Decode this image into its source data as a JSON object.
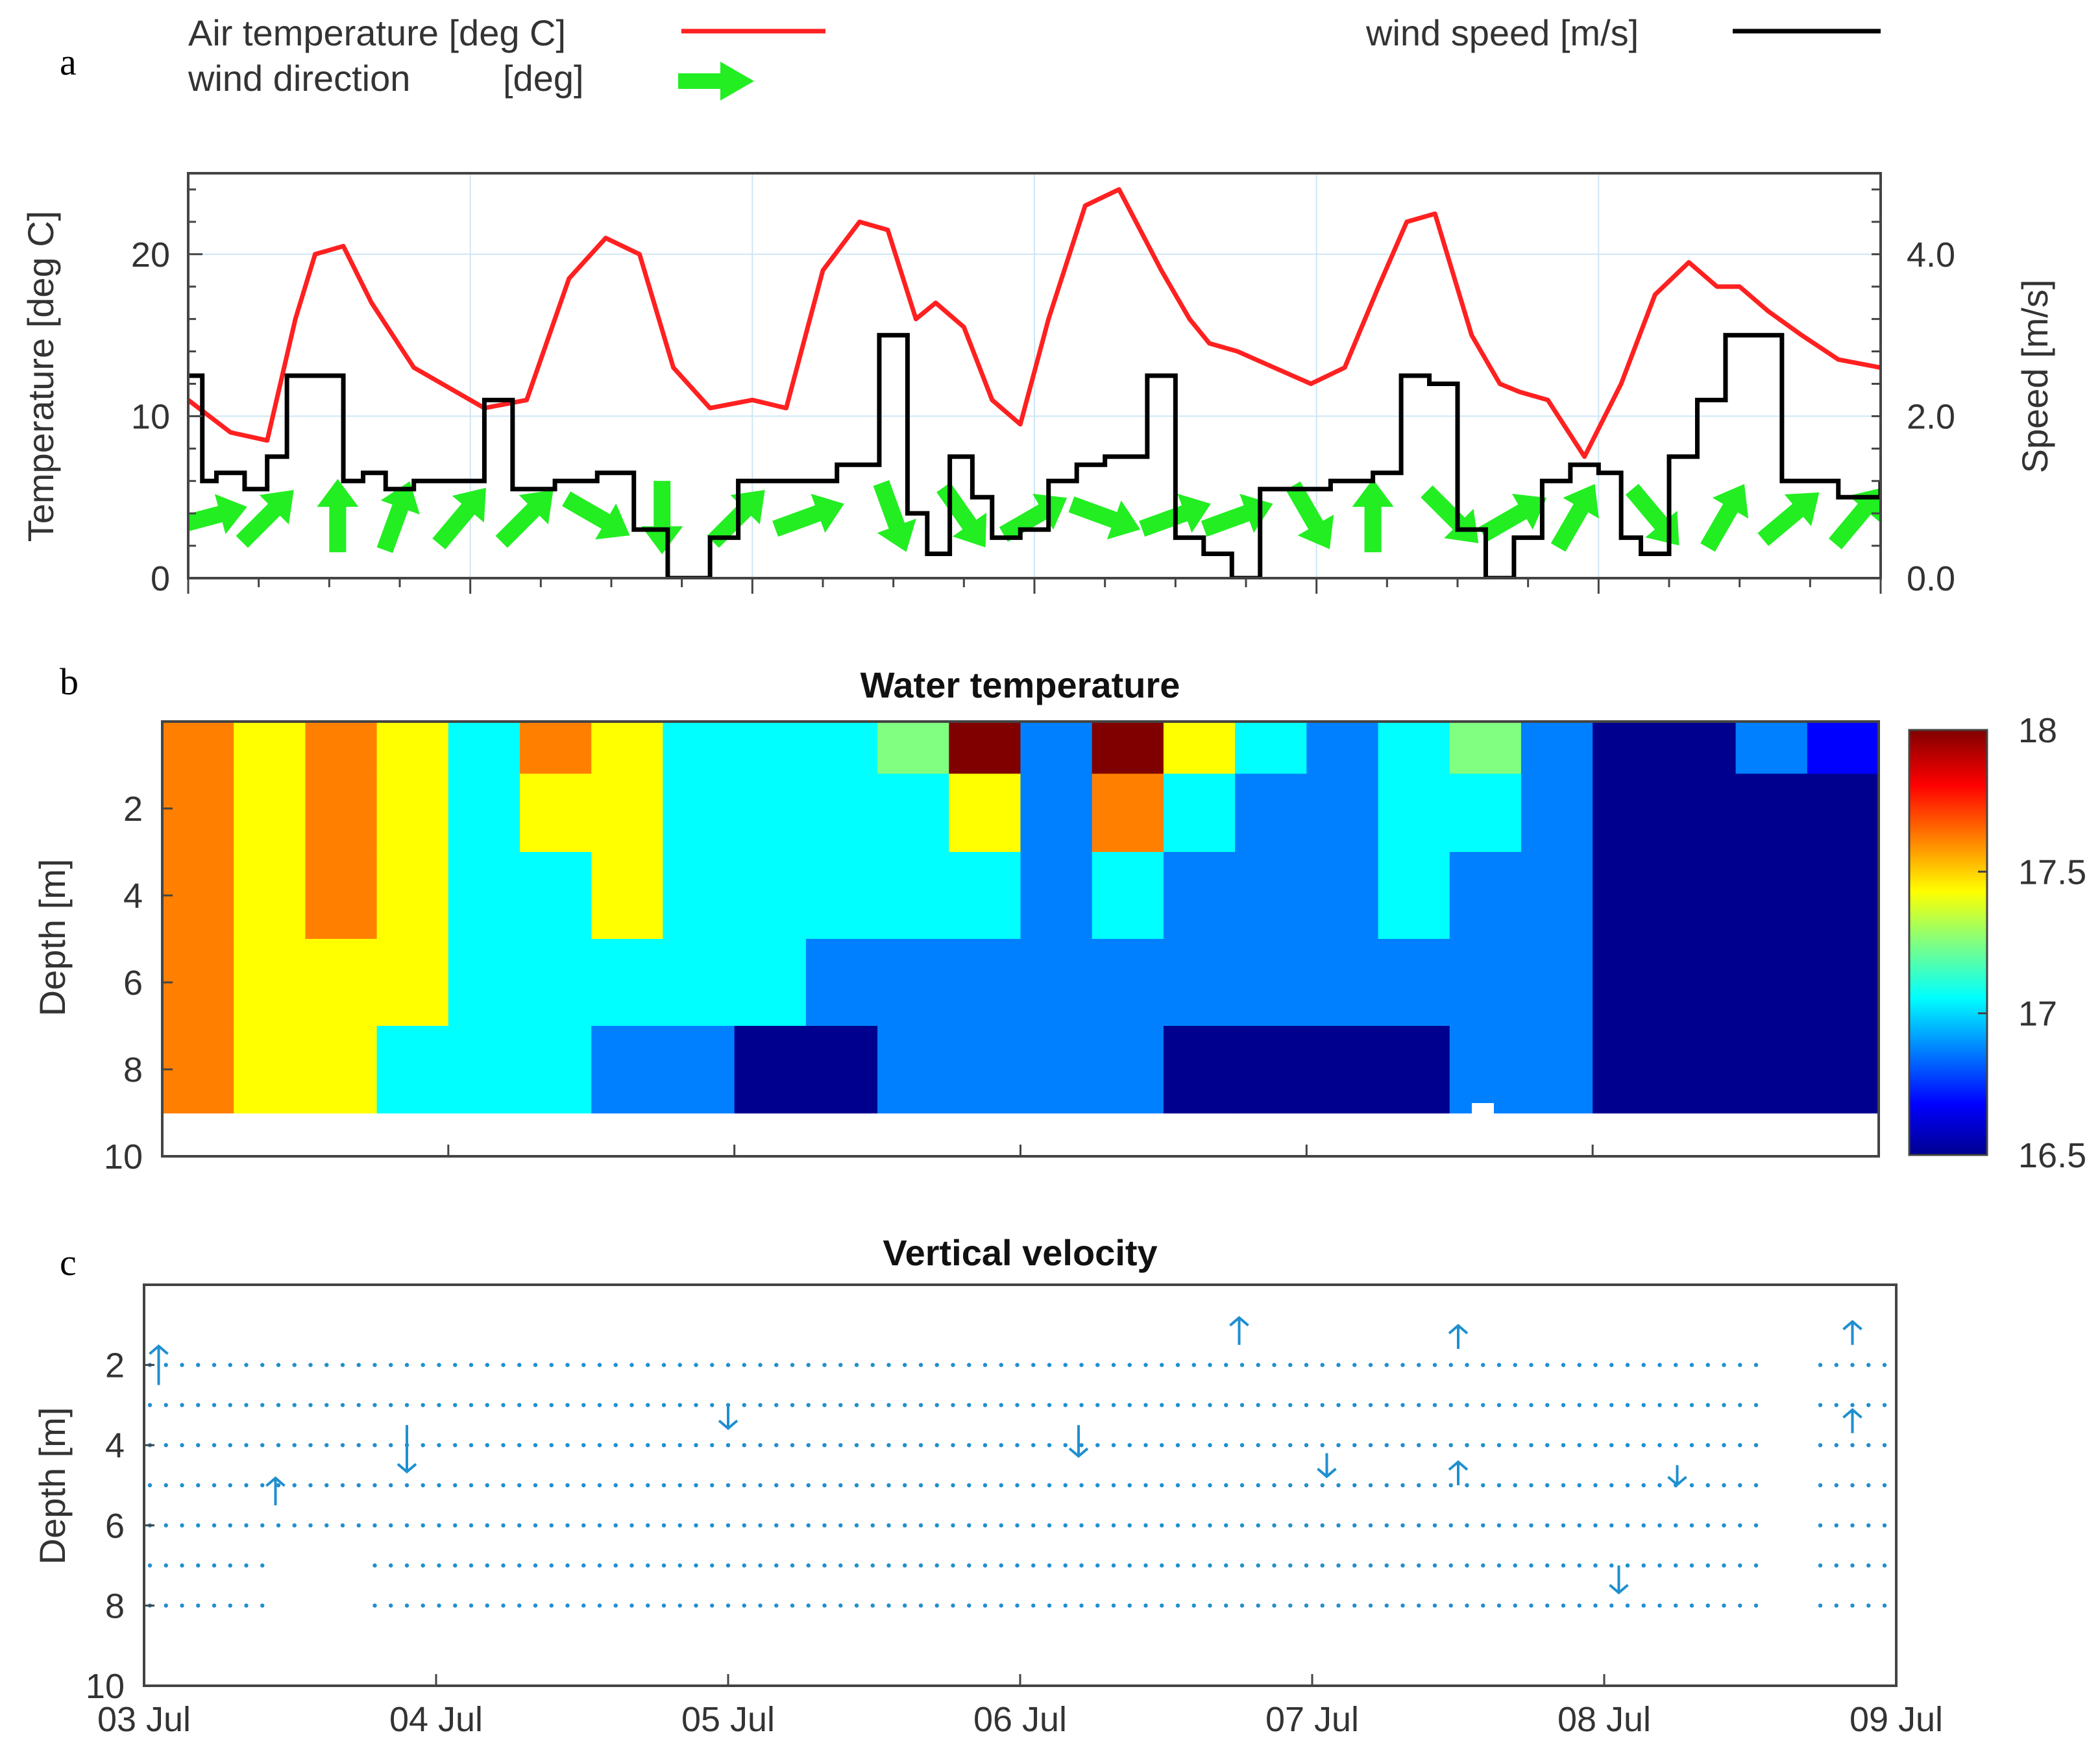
{
  "panel_labels": [
    "a",
    "b",
    "c"
  ],
  "colors": {
    "air_temperature": "#ff2020",
    "wind_speed": "#000000",
    "wind_direction": "#22ee22",
    "velocity_arrows": "#1f8fd0",
    "contour_scale": [
      "#00008f",
      "#0000ff",
      "#0080ff",
      "#00ffff",
      "#80ff80",
      "#ffff00",
      "#ff8000",
      "#ff0000",
      "#800000"
    ]
  },
  "chart_data": [
    {
      "type": "line",
      "panel": "a",
      "legend": {
        "air_temperature": "Air temperature [deg C]",
        "wind_direction_name": "wind direction",
        "wind_direction_unit": "[deg]",
        "wind_speed": "wind speed [m/s]"
      },
      "ylabel_left": "Temperature [deg C]",
      "ylabel_right": "Speed [m/s]",
      "xlim_days": [
        "03 Jul",
        "09 Jul"
      ],
      "ylim_left": [
        0,
        25
      ],
      "ylim_right": [
        0,
        5
      ],
      "yticks_left": [
        "0",
        "10",
        "20"
      ],
      "yticks_right": [
        "0.0",
        "2.0",
        "4.0"
      ],
      "grid": true,
      "series": [
        {
          "name": "Air temperature [deg C]",
          "axis": "left",
          "x_day": [
            0,
            0.15,
            0.28,
            0.38,
            0.45,
            0.55,
            0.65,
            0.8,
            0.95,
            1.05,
            1.2,
            1.35,
            1.48,
            1.6,
            1.72,
            1.85,
            2.0,
            2.12,
            2.25,
            2.38,
            2.48,
            2.58,
            2.65,
            2.75,
            2.85,
            2.95,
            3.05,
            3.18,
            3.3,
            3.45,
            3.55,
            3.62,
            3.72,
            3.85,
            3.98,
            4.1,
            4.22,
            4.32,
            4.42,
            4.55,
            4.65,
            4.72,
            4.82,
            4.95,
            5.08,
            5.2,
            5.32,
            5.42,
            5.5,
            5.6,
            5.72,
            5.85,
            6.0
          ],
          "values": [
            11,
            9,
            8.5,
            16,
            20,
            20.5,
            17,
            13,
            11.5,
            10.5,
            11,
            18.5,
            21,
            20,
            13,
            10.5,
            11,
            10.5,
            19,
            22,
            21.5,
            16,
            17,
            15.5,
            11,
            9.5,
            16,
            23,
            24,
            19,
            16,
            14.5,
            14,
            13,
            12,
            13,
            18,
            22,
            22.5,
            15,
            12,
            11.5,
            11,
            7.5,
            12,
            17.5,
            19.5,
            18,
            18,
            16.5,
            15,
            13.5,
            13
          ]
        },
        {
          "name": "wind speed [m/s]",
          "axis": "right",
          "x_day": [
            0,
            0.05,
            0.1,
            0.2,
            0.28,
            0.35,
            0.45,
            0.55,
            0.62,
            0.7,
            0.8,
            0.95,
            1.05,
            1.15,
            1.3,
            1.45,
            1.58,
            1.7,
            1.78,
            1.85,
            1.95,
            2.05,
            2.15,
            2.3,
            2.45,
            2.55,
            2.62,
            2.7,
            2.78,
            2.85,
            2.95,
            3.05,
            3.15,
            3.25,
            3.4,
            3.5,
            3.6,
            3.7,
            3.8,
            3.9,
            4.05,
            4.2,
            4.3,
            4.4,
            4.5,
            4.6,
            4.7,
            4.8,
            4.9,
            5.0,
            5.08,
            5.15,
            5.25,
            5.35,
            5.45,
            5.55,
            5.65,
            5.75,
            5.85,
            6.0
          ],
          "values": [
            2.5,
            1.2,
            1.3,
            1.1,
            1.5,
            2.5,
            2.5,
            1.2,
            1.3,
            1.1,
            1.2,
            1.2,
            2.2,
            1.1,
            1.2,
            1.3,
            0.6,
            0,
            0,
            0.5,
            1.2,
            1.2,
            1.2,
            1.4,
            3.0,
            0.8,
            0.3,
            1.5,
            1.0,
            0.5,
            0.6,
            1.2,
            1.4,
            1.5,
            2.5,
            0.5,
            0.3,
            0,
            1.1,
            1.1,
            1.2,
            1.3,
            2.5,
            2.4,
            0.6,
            0,
            0.5,
            1.2,
            1.4,
            1.3,
            0.5,
            0.3,
            1.5,
            2.2,
            3.0,
            3.0,
            1.2,
            1.2,
            1.0,
            1.2
          ]
        },
        {
          "name": "wind direction",
          "axis": "left",
          "x_day": [
            0.08,
            0.28,
            0.53,
            0.74,
            0.97,
            1.2,
            1.45,
            1.68,
            1.95,
            2.2,
            2.5,
            2.75,
            3.0,
            3.25,
            3.5,
            3.72,
            3.98,
            4.2,
            4.48,
            4.7,
            4.92,
            5.2,
            5.45,
            5.68,
            5.92
          ],
          "angle_deg": [
            15,
            45,
            90,
            70,
            50,
            45,
            -30,
            -90,
            45,
            20,
            -70,
            -55,
            30,
            -20,
            20,
            20,
            -60,
            90,
            -45,
            30,
            60,
            -50,
            60,
            40,
            50
          ]
        }
      ]
    },
    {
      "type": "heatmap",
      "panel": "b",
      "title": "Water temperature",
      "ylabel": "Depth [m]",
      "ylim": [
        10,
        0
      ],
      "yticks": [
        "2",
        "4",
        "6",
        "8",
        "10"
      ],
      "colorbar": {
        "min": 16.5,
        "max": 18,
        "ticks": [
          "18",
          "17.5",
          "17",
          "16.5"
        ]
      },
      "columns_x_day": [
        0,
        0.25,
        0.5,
        0.75,
        1.0,
        1.25,
        1.5,
        1.75,
        2.0,
        2.25,
        2.5,
        2.75,
        3.0,
        3.25,
        3.5,
        3.75,
        4.0,
        4.25,
        4.5,
        4.75,
        5.0,
        5.25,
        5.5,
        5.75
      ],
      "depths_m": [
        0.5,
        2,
        4,
        6,
        8.5
      ],
      "values": [
        [
          17.4,
          17.0,
          17.3,
          17.0,
          16.75,
          17.2,
          17.0,
          16.75,
          16.75,
          16.75,
          16.9,
          17.8,
          16.7,
          17.9,
          17.0,
          16.75,
          16.7,
          16.75,
          16.9,
          16.7,
          16.6,
          16.6,
          16.7,
          16.65
        ],
        [
          17.4,
          17.0,
          17.2,
          17.0,
          16.75,
          17.0,
          17.0,
          16.75,
          16.75,
          16.75,
          16.75,
          17.0,
          16.7,
          17.2,
          16.75,
          16.7,
          16.7,
          16.75,
          16.75,
          16.7,
          16.6,
          16.6,
          16.6,
          16.6
        ],
        [
          17.4,
          17.0,
          17.2,
          17.0,
          16.75,
          16.75,
          17.0,
          16.75,
          16.75,
          16.75,
          16.75,
          16.75,
          16.7,
          16.75,
          16.7,
          16.7,
          16.7,
          16.75,
          16.7,
          16.7,
          16.6,
          16.6,
          16.6,
          16.6
        ],
        [
          17.4,
          17.0,
          17.0,
          17.0,
          16.75,
          16.75,
          16.75,
          16.75,
          16.75,
          16.7,
          16.7,
          16.7,
          16.7,
          16.7,
          16.7,
          16.7,
          16.7,
          16.7,
          16.7,
          16.7,
          16.6,
          16.6,
          16.6,
          16.6
        ],
        [
          17.4,
          17.0,
          17.0,
          16.75,
          16.75,
          16.75,
          16.7,
          16.7,
          16.6,
          16.6,
          16.7,
          16.7,
          16.7,
          16.7,
          16.6,
          16.6,
          16.6,
          16.6,
          16.7,
          16.7,
          16.6,
          16.6,
          16.6,
          16.6
        ]
      ]
    },
    {
      "type": "scatter",
      "panel": "c",
      "title": "Vertical velocity",
      "ylabel": "Depth [m]",
      "ylim": [
        10,
        0
      ],
      "yticks": [
        "2",
        "4",
        "6",
        "8",
        "10"
      ],
      "xticks": [
        "03 Jul",
        "04 Jul",
        "05 Jul",
        "06 Jul",
        "07 Jul",
        "08 Jul",
        "09 Jul"
      ],
      "depth_levels_m": [
        2,
        3,
        4,
        5,
        6,
        7,
        8
      ],
      "notable_vectors": [
        {
          "x_day": 0.05,
          "depth": 2.5,
          "v": 1.0
        },
        {
          "x_day": 0.9,
          "depth": 3.5,
          "v": -1.2
        },
        {
          "x_day": 0.45,
          "depth": 5.5,
          "v": 0.7
        },
        {
          "x_day": 2.0,
          "depth": 3.0,
          "v": -0.6
        },
        {
          "x_day": 3.2,
          "depth": 3.5,
          "v": -0.8
        },
        {
          "x_day": 3.75,
          "depth": 1.5,
          "v": 0.7
        },
        {
          "x_day": 4.05,
          "depth": 4.2,
          "v": -0.6
        },
        {
          "x_day": 4.5,
          "depth": 1.6,
          "v": 0.6
        },
        {
          "x_day": 4.5,
          "depth": 5.0,
          "v": 0.6
        },
        {
          "x_day": 5.05,
          "depth": 7.0,
          "v": -0.7
        },
        {
          "x_day": 5.25,
          "depth": 4.5,
          "v": -0.5
        },
        {
          "x_day": 5.85,
          "depth": 1.5,
          "v": 0.6
        },
        {
          "x_day": 5.85,
          "depth": 3.7,
          "v": 0.6
        }
      ]
    }
  ]
}
